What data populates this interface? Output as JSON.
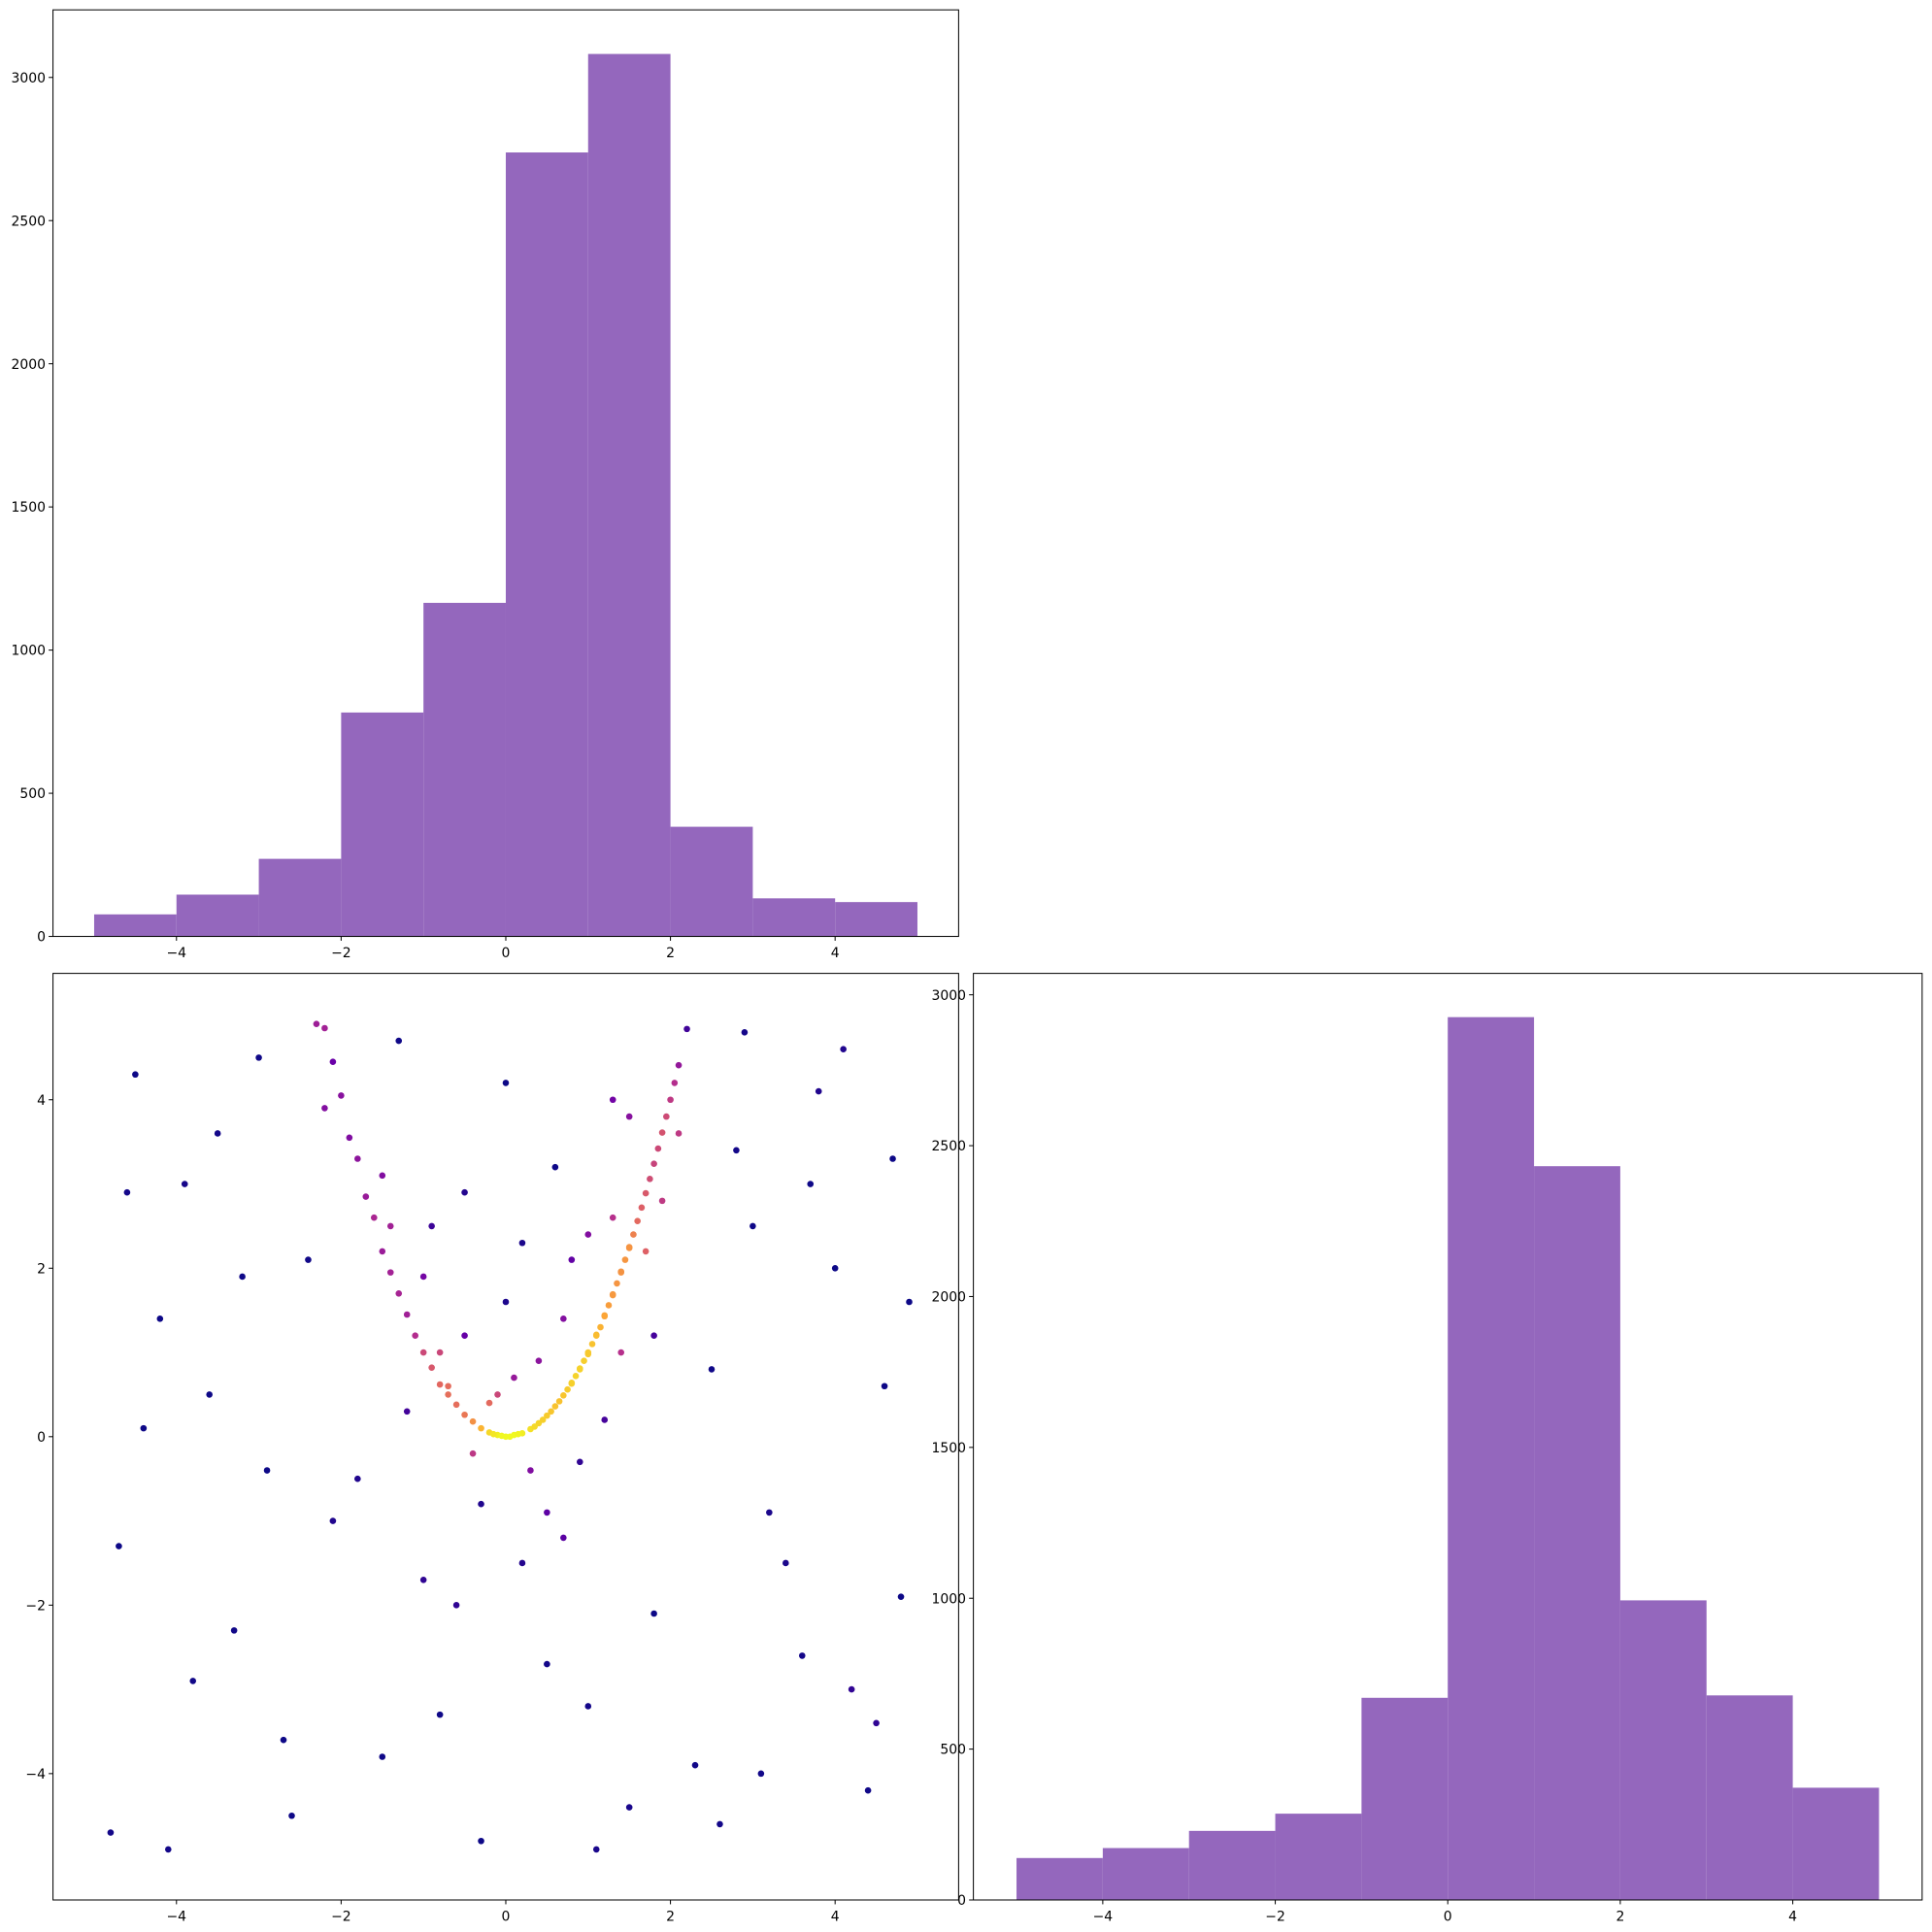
{
  "chart_data": [
    {
      "type": "histogram",
      "color": "#9467bd",
      "bins": [
        -5,
        -4,
        -3,
        -2,
        -1,
        0,
        1,
        2,
        3,
        4,
        5
      ],
      "values": [
        77,
        146,
        271,
        782,
        1165,
        2738,
        3082,
        383,
        133,
        120
      ],
      "xlim": [
        -5.5,
        5.5
      ],
      "xticks": [
        {
          "value": -4,
          "label": "−4"
        },
        {
          "value": -2,
          "label": "−2"
        },
        0,
        2,
        4
      ],
      "ylim": [
        0,
        3236
      ],
      "yticks": [
        0,
        500,
        1000,
        1500,
        2000,
        2500,
        3000
      ]
    },
    {
      "type": "scatter",
      "colormap": "plasma",
      "x": [
        -4.8,
        -4.5,
        -4.2,
        -3.9,
        -3.6,
        -3.3,
        -3.0,
        -2.7,
        -2.4,
        -2.1,
        -4.7,
        -4.1,
        -3.5,
        -2.9,
        -2.3,
        -4.6,
        -3.8,
        -3.2,
        -2.6,
        -4.4,
        2.6,
        3.0,
        3.4,
        3.8,
        4.2,
        4.6,
        4.9,
        2.8,
        3.6,
        4.4,
        2.5,
        3.2,
        4.0,
        4.8,
        2.9,
        3.7,
        4.5,
        3.1,
        4.1,
        4.7,
        -1.5,
        -0.5,
        0.5,
        1.5,
        -1.0,
        0.0,
        1.0,
        -1.8,
        1.8,
        -0.3,
        0.7,
        -1.3,
        1.3,
        2.3,
        -2.2,
        0.2,
        -0.8,
        1.1,
        -0.5,
        0.3,
        0.8,
        -0.9,
        1.5,
        0.2,
        -0.3,
        1.2,
        -1.2,
        0.6,
        1.8,
        -0.6,
        0.9,
        0.0,
        -1.5,
        1.0,
        -0.7,
        0.4,
        -0.2,
        1.4,
        -1.0,
        0.5,
        1.7,
        -0.4,
        0.1,
        1.9,
        -1.4,
        0.7,
        -0.1,
        1.3,
        2.1,
        -0.8,
        -2.2,
        -2.1,
        -2.0,
        -1.9,
        -1.8,
        -1.7,
        -1.6,
        -1.5,
        -1.4,
        -1.3,
        -1.2,
        -1.1,
        -1.0,
        -0.9,
        -0.8,
        -0.7,
        -0.6,
        -0.5,
        -0.4,
        -0.3,
        -0.2,
        -0.1,
        0.0,
        0.1,
        0.2,
        0.3,
        0.4,
        0.5,
        0.6,
        0.7,
        0.8,
        0.9,
        1.0,
        1.1,
        1.2,
        1.3,
        1.4,
        1.5,
        1.6,
        1.7,
        1.8,
        1.9,
        2.0,
        2.1,
        2.2,
        0.95,
        1.05,
        1.15,
        1.25,
        0.85,
        0.75,
        1.35,
        0.65,
        0.55,
        0.45,
        0.35,
        0.15,
        0.05,
        -0.05,
        -0.15,
        1.45,
        1.55,
        1.65,
        1.75,
        1.85,
        1.95,
        2.05,
        1.0,
        1.1,
        1.2,
        1.3,
        1.4,
        0.9,
        0.8,
        1.5
      ],
      "y": [
        -4.7,
        4.3,
        1.4,
        3.0,
        0.5,
        -2.3,
        4.5,
        -3.6,
        2.1,
        -1.0,
        -1.3,
        -4.9,
        3.6,
        -0.4,
        4.9,
        2.9,
        -2.9,
        1.9,
        -4.5,
        0.1,
        -4.6,
        2.5,
        -1.5,
        4.1,
        -3.0,
        0.6,
        1.6,
        3.4,
        -2.6,
        -4.2,
        0.8,
        -0.9,
        2.0,
        -1.9,
        4.8,
        3.0,
        -3.4,
        -4.0,
        4.6,
        3.3,
        -3.8,
        2.9,
        -2.7,
        -4.4,
        -1.7,
        4.2,
        -3.2,
        -0.5,
        -2.1,
        -4.8,
        -1.2,
        4.7,
        4.0,
        -3.9,
        3.9,
        2.3,
        -3.3,
        -4.9,
        1.2,
        -0.4,
        2.1,
        2.5,
        3.8,
        -1.5,
        -0.8,
        0.2,
        0.3,
        3.2,
        1.2,
        -2.0,
        -0.3,
        1.6,
        3.1,
        2.4,
        0.6,
        0.9,
        0.4,
        1.0,
        1.9,
        -0.9,
        2.2,
        -0.2,
        0.7,
        2.8,
        2.5,
        1.4,
        0.5,
        2.6,
        3.6,
        1.0,
        4.85,
        4.45,
        4.05,
        3.55,
        3.3,
        2.85,
        2.6,
        2.2,
        1.95,
        1.7,
        1.45,
        1.2,
        1.0,
        0.82,
        0.62,
        0.5,
        0.38,
        0.26,
        0.18,
        0.1,
        0.05,
        0.02,
        0.0,
        0.02,
        0.04,
        0.09,
        0.16,
        0.25,
        0.36,
        0.49,
        0.64,
        0.81,
        1.0,
        1.21,
        1.44,
        1.69,
        1.96,
        2.25,
        2.56,
        2.89,
        3.24,
        3.61,
        4.0,
        4.41,
        4.84,
        0.9,
        1.1,
        1.3,
        1.56,
        0.72,
        0.56,
        1.82,
        0.42,
        0.3,
        0.2,
        0.12,
        0.03,
        0.0,
        0.01,
        0.03,
        2.1,
        2.4,
        2.72,
        3.06,
        3.42,
        3.8,
        4.2,
        0.98,
        1.2,
        1.43,
        1.68,
        1.95,
        0.8,
        0.63,
        2.24
      ],
      "xlim": [
        -5.5,
        5.5
      ],
      "xticks": [
        {
          "value": -4,
          "label": "−4"
        },
        {
          "value": -2,
          "label": "−2"
        },
        0,
        2,
        4
      ],
      "ylim": [
        -5.5,
        5.5
      ],
      "yticks": [
        {
          "value": -4,
          "label": "−4"
        },
        {
          "value": -2,
          "label": "−2"
        },
        0,
        2,
        4
      ]
    },
    {
      "type": "histogram",
      "color": "#9467bd",
      "bins": [
        -5,
        -4,
        -3,
        -2,
        -1,
        0,
        1,
        2,
        3,
        4,
        5
      ],
      "values": [
        139,
        172,
        229,
        286,
        670,
        2926,
        2432,
        993,
        678,
        372
      ],
      "xlim": [
        -5.5,
        5.5
      ],
      "xticks": [
        {
          "value": -4,
          "label": "−4"
        },
        {
          "value": -2,
          "label": "−2"
        },
        0,
        2,
        4
      ],
      "ylim": [
        0,
        3071
      ],
      "yticks": [
        0,
        500,
        1000,
        1500,
        2000,
        2500,
        3000
      ]
    }
  ]
}
